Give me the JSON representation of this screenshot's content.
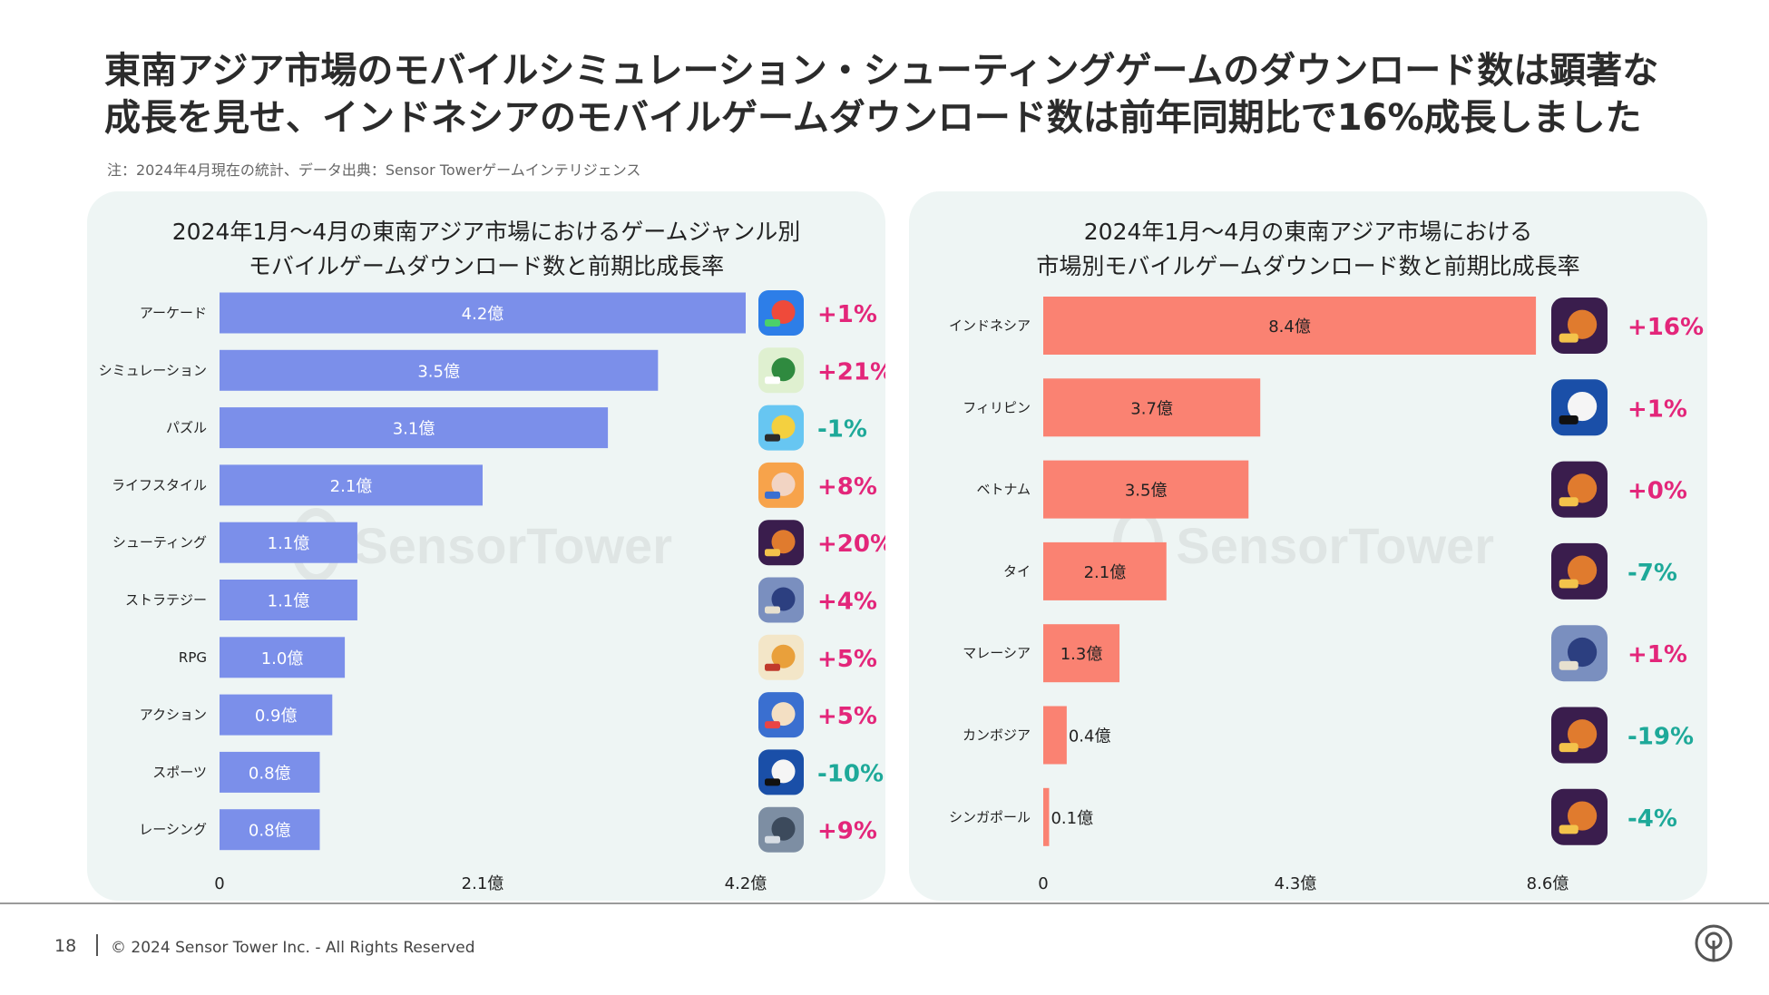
{
  "title_lines": [
    "東南アジア市場のモバイルシミュレーション・シューティングゲームのダウンロード数は顕著な",
    "成長を見せ、インドネシアのモバイルゲームダウンロード数は前年同期比で16%成長しました"
  ],
  "note": "注：2024年4月現在の統計、データ出典：Sensor Towerゲームインテリジェンス",
  "watermark": "SensorTower",
  "footer": {
    "page": "18",
    "copyright": "© 2024 Sensor Tower Inc. - All Rights Reserved"
  },
  "colors": {
    "left_bar": "#7b8fea",
    "right_bar": "#fa8272",
    "positive": "#e3267a",
    "negative": "#1ea999",
    "panel_bg": "#eef5f4"
  },
  "chart_data": [
    {
      "type": "bar",
      "orientation": "horizontal",
      "title_lines": [
        "2024年1月〜4月の東南アジア市場におけるゲームジャンル別",
        "モバイルゲームダウンロード数と前期比成長率"
      ],
      "categories": [
        "アーケード",
        "シミュレーション",
        "パズル",
        "ライフスタイル",
        "シューティング",
        "ストラテジー",
        "RPG",
        "アクション",
        "スポーツ",
        "レーシング"
      ],
      "values": [
        4.2,
        3.5,
        3.1,
        2.1,
        1.1,
        1.1,
        1.0,
        0.9,
        0.8,
        0.8
      ],
      "value_labels": [
        "4.2億",
        "3.5億",
        "3.1億",
        "2.1億",
        "1.1億",
        "1.1億",
        "1.0億",
        "0.9億",
        "0.8億",
        "0.8億"
      ],
      "growth": [
        "+1%",
        "+21%",
        "-1%",
        "+8%",
        "+20%",
        "+4%",
        "+5%",
        "+5%",
        "-10%",
        "+9%"
      ],
      "icons": [
        "arcade-game-icon",
        "ojol-game-icon",
        "puzzle-game-icon",
        "lifestyle-game-icon",
        "free-fire-game-icon",
        "kof-game-icon",
        "rpg-game-icon",
        "one-punch-man-game-icon",
        "8-ball-pool-game-icon",
        "racing-game-icon"
      ],
      "xlim": [
        0,
        4.2
      ],
      "xticks": [
        0,
        2.1,
        4.2
      ],
      "xtick_labels": [
        "0",
        "2.1億",
        "4.2億"
      ],
      "unit": "億"
    },
    {
      "type": "bar",
      "orientation": "horizontal",
      "title_lines": [
        "2024年1月〜4月の東南アジア市場における",
        "市場別モバイルゲームダウンロード数と前期比成長率"
      ],
      "categories": [
        "インドネシア",
        "フィリピン",
        "ベトナム",
        "タイ",
        "マレーシア",
        "カンボジア",
        "シンガポール"
      ],
      "values": [
        8.4,
        3.7,
        3.5,
        2.1,
        1.3,
        0.4,
        0.1
      ],
      "value_labels": [
        "8.4億",
        "3.7億",
        "3.5億",
        "2.1億",
        "1.3億",
        "0.4億",
        "0.1億"
      ],
      "growth": [
        "+16%",
        "+1%",
        "+0%",
        "-7%",
        "+1%",
        "-19%",
        "-4%"
      ],
      "icons": [
        "free-fire-game-icon",
        "8-ball-pool-game-icon",
        "free-fire-game-icon",
        "free-fire-game-icon",
        "kof-game-icon",
        "free-fire-game-icon",
        "free-fire-game-icon"
      ],
      "xlim": [
        0,
        8.6
      ],
      "xticks": [
        0,
        4.3,
        8.6
      ],
      "xtick_labels": [
        "0",
        "4.3億",
        "8.6億"
      ],
      "unit": "億"
    }
  ]
}
